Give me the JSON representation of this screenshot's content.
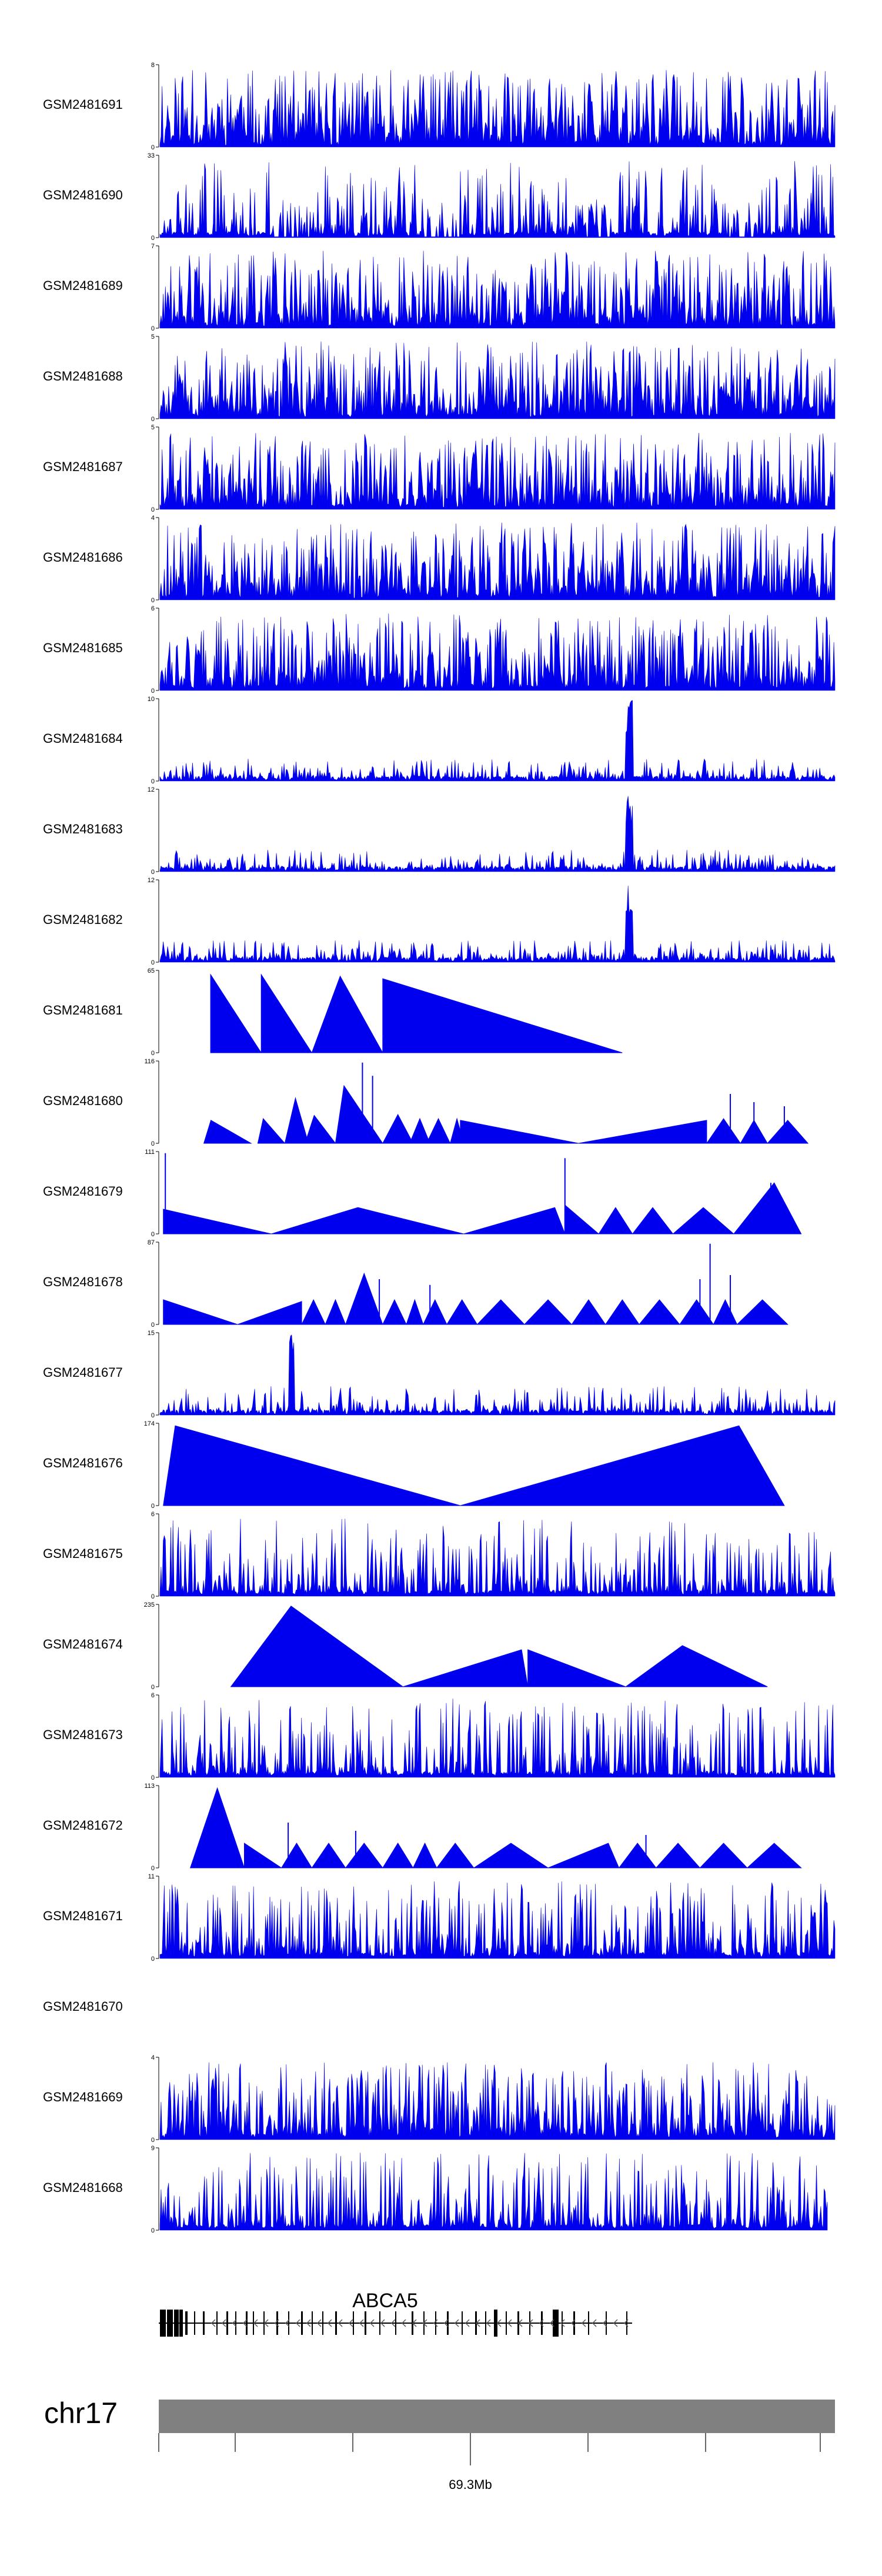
{
  "chart_data": {
    "type": "area",
    "title": "",
    "colors": {
      "signal": "#0000ee",
      "axis": "#000000",
      "ideogram": "#808080",
      "gene": "#000000"
    },
    "tracks": [
      {
        "name": "GSM2481691",
        "ymax": 8,
        "profile": "uniform",
        "density": 1.0,
        "seed": 11
      },
      {
        "name": "GSM2481690",
        "ymax": 33,
        "profile": "mixed",
        "density": 0.6,
        "seed": 12
      },
      {
        "name": "GSM2481689",
        "ymax": 7,
        "profile": "uniform",
        "density": 1.0,
        "seed": 13
      },
      {
        "name": "GSM2481688",
        "ymax": 5,
        "profile": "uniform",
        "density": 1.0,
        "seed": 14
      },
      {
        "name": "GSM2481687",
        "ymax": 5,
        "profile": "uniform",
        "density": 1.0,
        "seed": 15
      },
      {
        "name": "GSM2481686",
        "ymax": 4,
        "profile": "uniform",
        "density": 1.0,
        "seed": 16
      },
      {
        "name": "GSM2481685",
        "ymax": 6,
        "profile": "uniform",
        "density": 1.0,
        "seed": 17
      },
      {
        "name": "GSM2481684",
        "ymax": 10,
        "profile": "peak",
        "density": 1.0,
        "seed": 18
      },
      {
        "name": "GSM2481683",
        "ymax": 12,
        "profile": "peak",
        "density": 1.0,
        "seed": 19
      },
      {
        "name": "GSM2481682",
        "ymax": 12,
        "profile": "peak",
        "density": 1.0,
        "seed": 20
      },
      {
        "name": "GSM2481681",
        "ymax": 65,
        "profile": "triangles",
        "triangles": [
          [
            0.075,
            0.15,
            0.0,
            0.95
          ],
          [
            0.15,
            0.225,
            0.0,
            0.95
          ],
          [
            0.225,
            0.33,
            0.4,
            0.93
          ],
          [
            0.33,
            0.685,
            0.0,
            0.9
          ]
        ]
      },
      {
        "name": "GSM2481680",
        "ymax": 116,
        "profile": "triangles",
        "triangles": [
          [
            0.065,
            0.135,
            0.15,
            0.28
          ],
          [
            0.145,
            0.185,
            0.2,
            0.3
          ],
          [
            0.185,
            0.22,
            0.45,
            0.55
          ],
          [
            0.215,
            0.26,
            0.3,
            0.34
          ],
          [
            0.26,
            0.33,
            0.18,
            0.7
          ],
          [
            0.33,
            0.375,
            0.5,
            0.35
          ],
          [
            0.37,
            0.4,
            0.5,
            0.3
          ],
          [
            0.395,
            0.43,
            0.5,
            0.3
          ],
          [
            0.43,
            0.45,
            0.5,
            0.3
          ],
          [
            0.445,
            0.62,
            0.0,
            0.28
          ],
          [
            0.62,
            0.81,
            1.0,
            0.28
          ],
          [
            0.81,
            0.86,
            0.5,
            0.3
          ],
          [
            0.86,
            0.9,
            0.5,
            0.28
          ],
          [
            0.9,
            0.96,
            0.5,
            0.28
          ]
        ],
        "spikes": [
          [
            0.3,
            0.98
          ],
          [
            0.315,
            0.82
          ],
          [
            0.845,
            0.6
          ],
          [
            0.88,
            0.5
          ],
          [
            0.925,
            0.45
          ]
        ]
      },
      {
        "name": "GSM2481679",
        "ymax": 111,
        "profile": "triangles",
        "triangles": [
          [
            0.005,
            0.165,
            0.0,
            0.3
          ],
          [
            0.165,
            0.45,
            0.45,
            0.32
          ],
          [
            0.45,
            0.6,
            0.9,
            0.32
          ],
          [
            0.6,
            0.65,
            0.0,
            0.35
          ],
          [
            0.65,
            0.7,
            0.5,
            0.32
          ],
          [
            0.7,
            0.76,
            0.5,
            0.32
          ],
          [
            0.76,
            0.85,
            0.5,
            0.32
          ],
          [
            0.85,
            0.95,
            0.6,
            0.62
          ]
        ],
        "spikes": [
          [
            0.008,
            0.98
          ],
          [
            0.6,
            0.92
          ],
          [
            0.905,
            0.62
          ]
        ]
      },
      {
        "name": "GSM2481678",
        "ymax": 87,
        "profile": "triangles",
        "triangles": [
          [
            0.005,
            0.115,
            0.0,
            0.3
          ],
          [
            0.115,
            0.21,
            1.0,
            0.28
          ],
          [
            0.21,
            0.245,
            0.5,
            0.3
          ],
          [
            0.245,
            0.275,
            0.5,
            0.3
          ],
          [
            0.275,
            0.33,
            0.5,
            0.62
          ],
          [
            0.33,
            0.365,
            0.5,
            0.3
          ],
          [
            0.365,
            0.39,
            0.5,
            0.3
          ],
          [
            0.39,
            0.425,
            0.5,
            0.3
          ],
          [
            0.425,
            0.47,
            0.5,
            0.3
          ],
          [
            0.47,
            0.54,
            0.5,
            0.3
          ],
          [
            0.54,
            0.61,
            0.5,
            0.3
          ],
          [
            0.61,
            0.66,
            0.5,
            0.3
          ],
          [
            0.66,
            0.71,
            0.5,
            0.3
          ],
          [
            0.71,
            0.77,
            0.5,
            0.3
          ],
          [
            0.77,
            0.82,
            0.5,
            0.3
          ],
          [
            0.82,
            0.855,
            0.5,
            0.3
          ],
          [
            0.855,
            0.93,
            0.5,
            0.3
          ]
        ],
        "spikes": [
          [
            0.325,
            0.55
          ],
          [
            0.4,
            0.48
          ],
          [
            0.8,
            0.55
          ],
          [
            0.815,
            0.98
          ],
          [
            0.845,
            0.6
          ]
        ]
      },
      {
        "name": "GSM2481677",
        "ymax": 15,
        "profile": "peak2",
        "density": 1.0,
        "seed": 21
      },
      {
        "name": "GSM2481676",
        "ymax": 174,
        "profile": "triangles",
        "triangles": [
          [
            0.005,
            0.445,
            0.04,
            0.97
          ],
          [
            0.445,
            0.925,
            0.86,
            0.97
          ]
        ]
      },
      {
        "name": "GSM2481675",
        "ymax": 6,
        "profile": "uniform",
        "density": 0.7,
        "seed": 22
      },
      {
        "name": "GSM2481674",
        "ymax": 235,
        "profile": "triangles",
        "triangles": [
          [
            0.105,
            0.36,
            0.35,
            0.98
          ],
          [
            0.36,
            0.545,
            0.95,
            0.45
          ],
          [
            0.545,
            0.69,
            0.0,
            0.45
          ],
          [
            0.69,
            0.9,
            0.4,
            0.5
          ]
        ]
      },
      {
        "name": "GSM2481673",
        "ymax": 6,
        "profile": "sparse",
        "density": 0.6,
        "seed": 23
      },
      {
        "name": "GSM2481672",
        "ymax": 113,
        "profile": "triangles",
        "triangles": [
          [
            0.045,
            0.125,
            0.5,
            0.97
          ],
          [
            0.125,
            0.18,
            0.0,
            0.3
          ],
          [
            0.18,
            0.225,
            0.5,
            0.3
          ],
          [
            0.225,
            0.275,
            0.5,
            0.3
          ],
          [
            0.275,
            0.33,
            0.5,
            0.3
          ],
          [
            0.33,
            0.375,
            0.5,
            0.3
          ],
          [
            0.375,
            0.41,
            0.5,
            0.3
          ],
          [
            0.41,
            0.465,
            0.5,
            0.3
          ],
          [
            0.465,
            0.575,
            0.5,
            0.3
          ],
          [
            0.575,
            0.68,
            0.85,
            0.3
          ],
          [
            0.68,
            0.735,
            0.5,
            0.3
          ],
          [
            0.735,
            0.8,
            0.5,
            0.3
          ],
          [
            0.8,
            0.87,
            0.5,
            0.3
          ],
          [
            0.87,
            0.95,
            0.5,
            0.3
          ]
        ],
        "spikes": [
          [
            0.19,
            0.55
          ],
          [
            0.29,
            0.45
          ],
          [
            0.72,
            0.4
          ]
        ]
      },
      {
        "name": "GSM2481671",
        "ymax": 11,
        "profile": "uniform",
        "density": 0.8,
        "seed": 24
      },
      {
        "name": "GSM2481670",
        "ymax": null,
        "profile": "empty"
      },
      {
        "name": "GSM2481669",
        "ymax": 4,
        "profile": "uniform",
        "density": 1.0,
        "seed": 25
      },
      {
        "name": "GSM2481668",
        "ymax": 9,
        "profile": "uniform",
        "density": 0.7,
        "seed": 26,
        "end": 0.99
      }
    ],
    "gene": {
      "name": "ABCA5",
      "strand": "-"
    },
    "chromosome": {
      "name": "chr17",
      "position_label": "69.3Mb"
    }
  }
}
